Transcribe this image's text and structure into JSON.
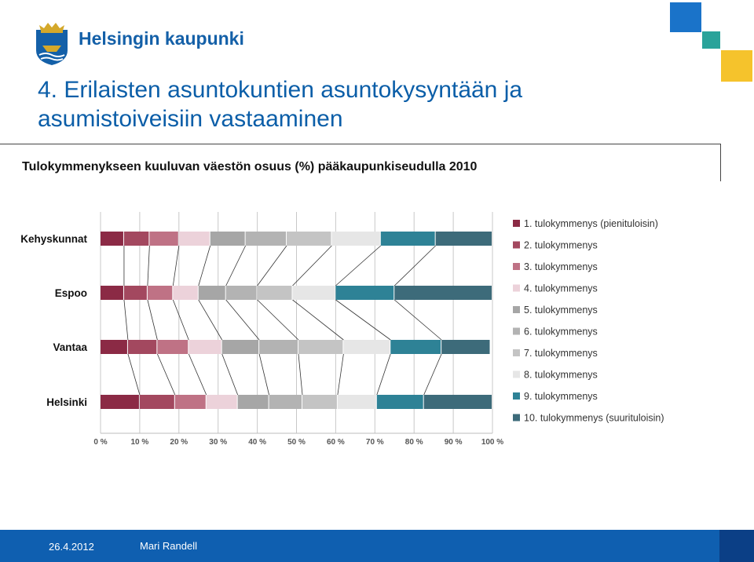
{
  "header": {
    "org_name": "Helsingin kaupunki",
    "logo_icon": "helsinki-coat-of-arms-icon"
  },
  "slide": {
    "title": "4. Erilaisten asuntokuntien asuntokysyntään ja asumistoiveisiin vastaaminen",
    "subtitle": "Tulokymmenykseen kuuluvan väestön osuus (%) pääkaupunkiseudulla 2010"
  },
  "footer": {
    "date": "26.4.2012",
    "author": "Mari Randell"
  },
  "colors": {
    "brand_blue": "#0f5fb0",
    "brand_dark_blue": "#0b3f86",
    "deco_blue": "#1a73c9",
    "deco_teal": "#2aa39a",
    "deco_yellow": "#f5c32c"
  },
  "chart_data": {
    "type": "bar",
    "orientation": "horizontal",
    "stacked": true,
    "percent_stacked": true,
    "categories": [
      "Kehyskunnat",
      "Espoo",
      "Vantaa",
      "Helsinki"
    ],
    "xlim": [
      0,
      100
    ],
    "x_ticks": [
      "0 %",
      "10 %",
      "20 %",
      "30 %",
      "40 %",
      "50 %",
      "60 %",
      "70 %",
      "80 %",
      "90 %",
      "100 %"
    ],
    "grid": true,
    "legend_position": "right",
    "series": [
      {
        "name": "1. tulokymmenys (pienituloisin)",
        "color": "#8b2a45",
        "values": [
          6,
          6,
          7,
          10
        ]
      },
      {
        "name": "2. tulokymmenys",
        "color": "#a3485f",
        "values": [
          6.5,
          6,
          7.5,
          9
        ]
      },
      {
        "name": "3. tulokymmenys",
        "color": "#bf7285",
        "values": [
          7.5,
          6.5,
          8,
          8
        ]
      },
      {
        "name": "4. tulokymmenys",
        "color": "#ecd2da",
        "values": [
          8,
          6.5,
          8.5,
          8
        ]
      },
      {
        "name": "5. tulokymmenys",
        "color": "#a6a6a6",
        "values": [
          9,
          7,
          9.5,
          8
        ]
      },
      {
        "name": "6. tulokymmenys",
        "color": "#b3b3b3",
        "values": [
          10.5,
          8,
          10,
          8.5
        ]
      },
      {
        "name": "7. tulokymmenys",
        "color": "#c4c4c4",
        "values": [
          11.5,
          9,
          11.5,
          9
        ]
      },
      {
        "name": "8. tulokymmenys",
        "color": "#e6e6e6",
        "values": [
          12.5,
          11,
          12,
          10
        ]
      },
      {
        "name": "9. tulokymmenys",
        "color": "#2e8296",
        "values": [
          14,
          15,
          13,
          12
        ]
      },
      {
        "name": "10. tulokymmenys (suurituloisin)",
        "color": "#3d6b7a",
        "values": [
          14.5,
          25,
          12.5,
          17.5
        ]
      }
    ]
  }
}
